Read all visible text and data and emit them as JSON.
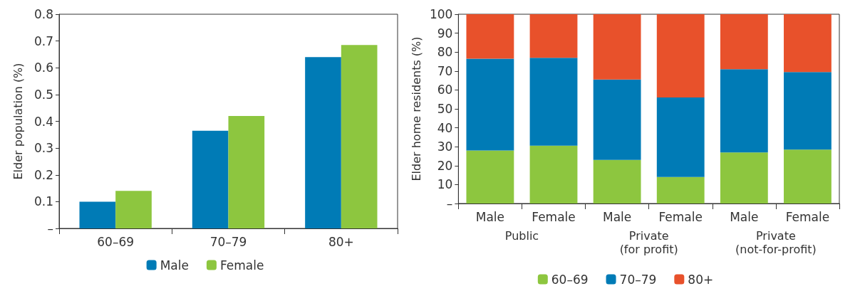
{
  "chart_data": [
    {
      "type": "bar",
      "ylabel": "Elder population (%)",
      "categories": [
        "60–69",
        "70–79",
        "80+"
      ],
      "series": [
        {
          "name": "Male",
          "color": "#007bb6",
          "values": [
            0.1,
            0.365,
            0.64
          ]
        },
        {
          "name": "Female",
          "color": "#8dc63f",
          "values": [
            0.14,
            0.42,
            0.685
          ]
        }
      ],
      "ylim": [
        0,
        0.8
      ],
      "yticks": [
        {
          "value": 0,
          "label": "–"
        },
        0.1,
        0.2,
        0.3,
        0.4,
        0.5,
        0.6,
        0.7,
        0.8
      ],
      "grid": false,
      "legend": "bottom"
    },
    {
      "type": "bar",
      "stacked": true,
      "ylabel": "Elder home residents (%)",
      "categories": [
        "Male",
        "Female",
        "Male",
        "Female",
        "Male",
        "Female"
      ],
      "series": [
        {
          "name": "60–69",
          "color": "#8dc63f",
          "values": [
            28,
            30.5,
            23,
            14,
            27,
            28.5
          ]
        },
        {
          "name": "70–79",
          "color": "#007bb6",
          "values": [
            48.5,
            46.5,
            42.5,
            42,
            44,
            41
          ]
        },
        {
          "name": "80+",
          "color": "#e8512b",
          "values": [
            23.5,
            23,
            34.5,
            44,
            29,
            30.5
          ]
        }
      ],
      "annotations": [
        "Public",
        "Private\n(for profit)",
        "Private\n(not-for-profit)"
      ],
      "ylim": [
        0,
        100
      ],
      "yticks": [
        {
          "value": 0,
          "label": "–"
        },
        10,
        20,
        30,
        40,
        50,
        60,
        70,
        80,
        90,
        100
      ],
      "grid": false,
      "legend": "bottom"
    }
  ]
}
